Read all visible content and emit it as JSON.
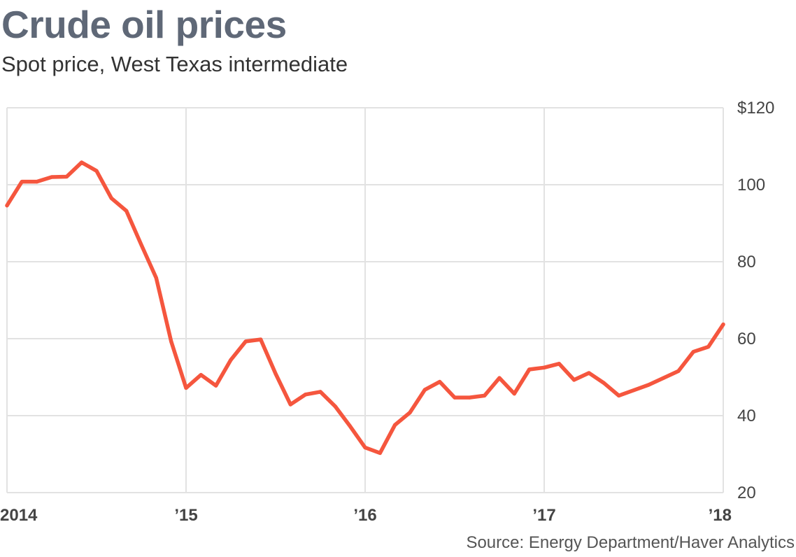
{
  "header": {
    "title": "Crude oil prices",
    "subtitle": "Spot price, West Texas intermediate"
  },
  "footer": {
    "source": "Source: Energy Department/Haver Analytics"
  },
  "chart_data": {
    "type": "line",
    "title": "Crude oil prices",
    "subtitle": "Spot price, West Texas intermediate",
    "xlabel": "",
    "ylabel": "",
    "xlim": [
      2014,
      2018
    ],
    "ylim": [
      20,
      120
    ],
    "y_ticks": [
      {
        "value": 120,
        "label": "$120"
      },
      {
        "value": 100,
        "label": "100"
      },
      {
        "value": 80,
        "label": "80"
      },
      {
        "value": 60,
        "label": "60"
      },
      {
        "value": 40,
        "label": "40"
      },
      {
        "value": 20,
        "label": "20"
      }
    ],
    "x_ticks": [
      {
        "value": 2014,
        "label": "2014"
      },
      {
        "value": 2015,
        "label": "’15"
      },
      {
        "value": 2016,
        "label": "’16"
      },
      {
        "value": 2017,
        "label": "’17"
      },
      {
        "value": 2018,
        "label": "’18"
      }
    ],
    "grid": true,
    "y_axis_side": "right",
    "line_color": "#f5563e",
    "grid_color": "#e2e2e2",
    "series": [
      {
        "x": [
          "2014-01",
          "2014-02",
          "2014-03",
          "2014-04",
          "2014-05",
          "2014-06",
          "2014-07",
          "2014-08",
          "2014-09",
          "2014-10",
          "2014-11",
          "2014-12",
          "2015-01",
          "2015-02",
          "2015-03",
          "2015-04",
          "2015-05",
          "2015-06",
          "2015-07",
          "2015-08",
          "2015-09",
          "2015-10",
          "2015-11",
          "2015-12",
          "2016-01",
          "2016-02",
          "2016-03",
          "2016-04",
          "2016-05",
          "2016-06",
          "2016-07",
          "2016-08",
          "2016-09",
          "2016-10",
          "2016-11",
          "2016-12",
          "2017-01",
          "2017-02",
          "2017-03",
          "2017-04",
          "2017-05",
          "2017-06",
          "2017-07",
          "2017-08",
          "2017-09",
          "2017-10",
          "2017-11",
          "2017-12",
          "2018-01"
        ],
        "values": [
          94.6,
          100.8,
          100.8,
          102.0,
          102.1,
          105.8,
          103.6,
          96.5,
          93.2,
          84.4,
          75.8,
          59.3,
          47.2,
          50.6,
          47.8,
          54.5,
          59.3,
          59.8,
          50.9,
          42.9,
          45.5,
          46.2,
          42.4,
          37.2,
          31.7,
          30.3,
          37.6,
          40.8,
          46.7,
          48.8,
          44.7,
          44.7,
          45.2,
          49.8,
          45.7,
          52.0,
          52.5,
          53.5,
          49.3,
          51.1,
          48.5,
          45.2,
          46.6,
          48.0,
          49.8,
          51.6,
          56.6,
          57.9,
          63.7
        ]
      }
    ]
  }
}
